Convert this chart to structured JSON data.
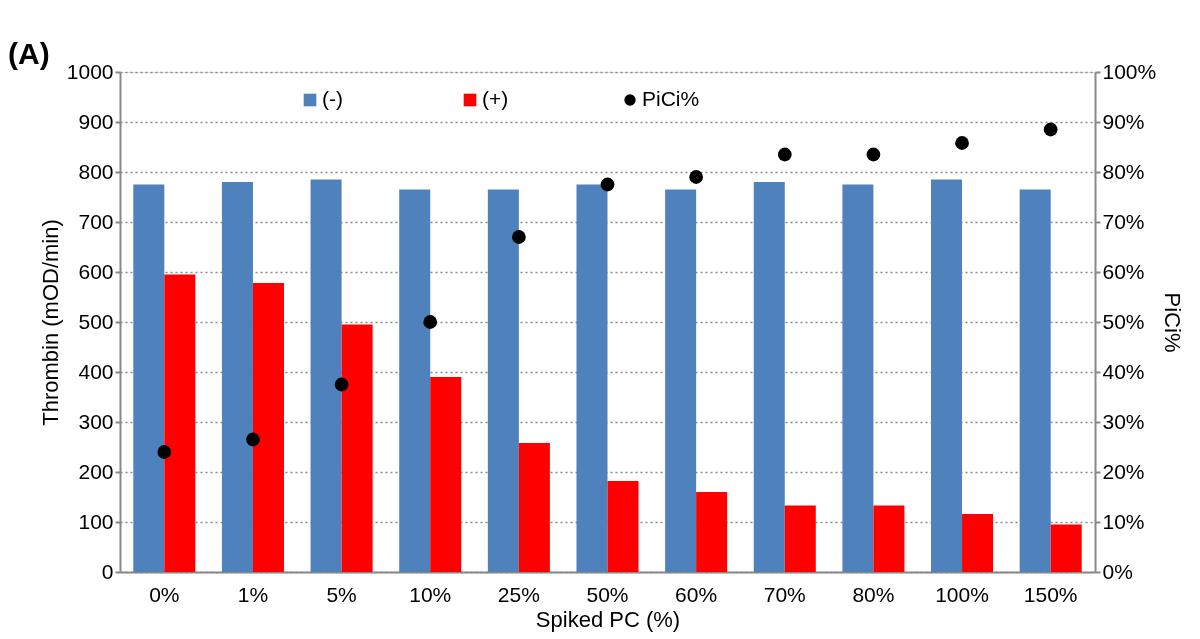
{
  "chart_data": {
    "type": "bar",
    "xlabel": "Spiked PC (%)",
    "ylabel": "Thrombin (mOD/min)",
    "y2label": "PiCi%",
    "categories": [
      "0%",
      "1%",
      "5%",
      "10%",
      "25%",
      "50%",
      "60%",
      "70%",
      "80%",
      "100%",
      "150%"
    ],
    "series": [
      {
        "name": "(-)",
        "color": "#4f81bd",
        "values": [
          775,
          780,
          785,
          765,
          765,
          775,
          765,
          780,
          775,
          785,
          765
        ]
      },
      {
        "name": "(+)",
        "color": "#ff0000",
        "values": [
          595,
          578,
          495,
          390,
          258,
          182,
          160,
          133,
          133,
          116,
          95
        ]
      },
      {
        "name": "PiCi%",
        "type": "scatter",
        "axis": "y2",
        "color": "#000000",
        "values": [
          24,
          26.5,
          37.5,
          50,
          67,
          77.5,
          79,
          83.5,
          83.5,
          85.8,
          88.5
        ]
      }
    ],
    "ylim": [
      0,
      1000
    ],
    "yticks": [
      0,
      100,
      200,
      300,
      400,
      500,
      600,
      700,
      800,
      900,
      1000
    ],
    "y2lim": [
      0,
      100
    ],
    "y2ticks": [
      {
        "value": 0,
        "label": "0%"
      },
      {
        "value": 10,
        "label": "10%"
      },
      {
        "value": 20,
        "label": "20%"
      },
      {
        "value": 30,
        "label": "30%"
      },
      {
        "value": 40,
        "label": "40%"
      },
      {
        "value": 50,
        "label": "50%"
      },
      {
        "value": 60,
        "label": "60%"
      },
      {
        "value": 70,
        "label": "70%"
      },
      {
        "value": 80,
        "label": "80%"
      },
      {
        "value": 90,
        "label": "90%"
      },
      {
        "value": 100,
        "label": "100%"
      }
    ],
    "grid": "y",
    "legend": "top",
    "marker": "circle",
    "annotations": [
      "(A)"
    ]
  }
}
